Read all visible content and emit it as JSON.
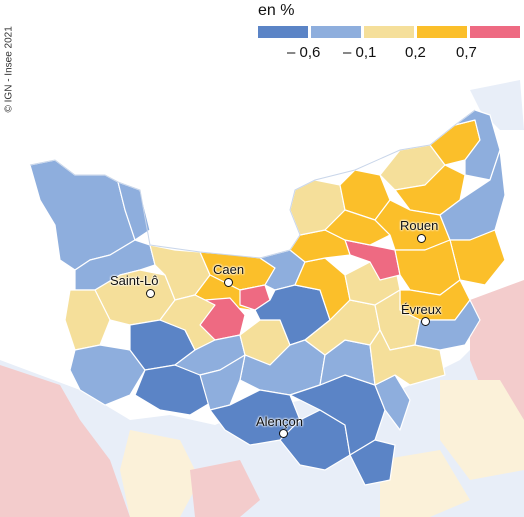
{
  "copyright": "© IGN - Insee 2021",
  "legend": {
    "unit": "en %",
    "colors": [
      "#5b84c6",
      "#8eaedd",
      "#f5df9a",
      "#fbbf2a",
      "#ee6a82"
    ],
    "ticks": [
      "– 0,6",
      "– 0,1",
      "0,2",
      "0,7"
    ]
  },
  "cities": [
    {
      "name": "Saint-Lô"
    },
    {
      "name": "Caen"
    },
    {
      "name": "Rouen"
    },
    {
      "name": "Évreux"
    },
    {
      "name": "Alençon"
    }
  ],
  "colors": {
    "sea": "#ffffff",
    "outside_region": "#e8eef8",
    "outside_pink": "#f3cccc",
    "outside_beige": "#fbf1d9",
    "border": "#ffffff"
  }
}
